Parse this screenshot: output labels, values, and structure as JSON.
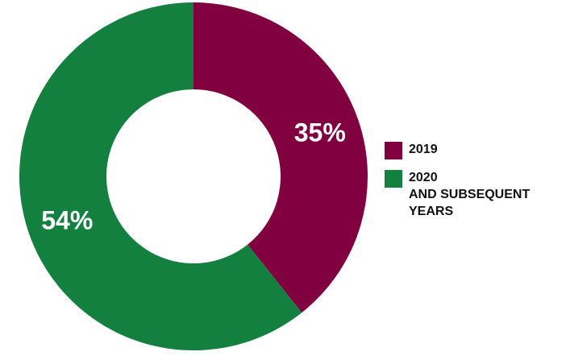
{
  "chart_data": {
    "type": "pie",
    "donut": true,
    "slices": [
      {
        "label": "2019",
        "value": 35,
        "value_label": "35%",
        "color": "#800040"
      },
      {
        "label": "2020\nAND SUBSEQUENT\nYEARS",
        "value": 54,
        "value_label": "54%",
        "color": "#138040"
      }
    ],
    "legend_position": "right"
  }
}
